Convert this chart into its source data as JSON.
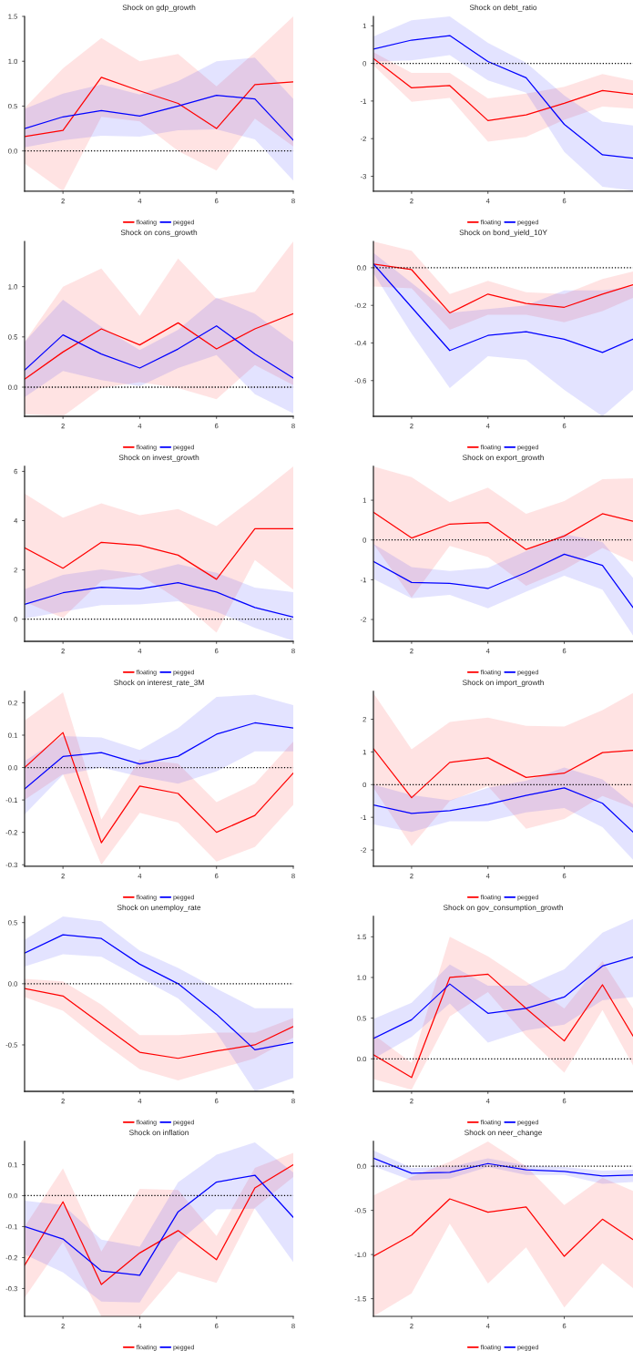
{
  "chart_data": [
    {
      "type": "line",
      "title": "Shock on gdp_growth",
      "x": [
        1,
        2,
        3,
        4,
        5,
        6,
        7,
        8
      ],
      "xlim": [
        1,
        8
      ],
      "xticks": [
        2,
        4,
        6,
        8
      ],
      "ylim": [
        -0.45,
        1.5
      ],
      "yticks": [
        {
          "value": 0,
          "label": "0.0"
        },
        {
          "value": 0.5,
          "label": "0.5"
        },
        {
          "value": 1,
          "label": "1.0"
        },
        1.5
      ],
      "grid": false,
      "legend": "bottom",
      "ref_lines": [
        {
          "axis": "y",
          "value": 0,
          "color": "#000000",
          "line_style": "dotted"
        }
      ],
      "series": [
        {
          "name": "floating",
          "color": "#ff0000",
          "values": [
            0.16,
            0.23,
            0.82,
            0.67,
            0.53,
            0.25,
            0.74,
            0.77
          ],
          "lower": [
            -0.14,
            -0.45,
            0.38,
            0.33,
            0.0,
            -0.22,
            0.36,
            0.05
          ],
          "upper": [
            0.48,
            0.92,
            1.26,
            1.0,
            1.08,
            0.72,
            1.1,
            1.5
          ]
        },
        {
          "name": "pegged",
          "color": "#0000ff",
          "values": [
            0.25,
            0.38,
            0.45,
            0.39,
            0.5,
            0.62,
            0.58,
            0.12
          ],
          "lower": [
            0.04,
            0.12,
            0.17,
            0.16,
            0.23,
            0.24,
            0.13,
            -0.33
          ],
          "upper": [
            0.47,
            0.64,
            0.74,
            0.63,
            0.78,
            1.0,
            1.04,
            0.58
          ]
        }
      ]
    },
    {
      "type": "line",
      "title": "Shock on debt_ratio",
      "x": [
        1,
        2,
        3,
        4,
        5,
        6,
        7,
        7.8
      ],
      "xlim": [
        1,
        7.8
      ],
      "xticks": [
        2,
        4,
        6
      ],
      "ylim": [
        -3.4,
        1.25
      ],
      "yticks": [
        -3,
        -2,
        -1,
        0,
        1
      ],
      "grid": false,
      "legend": "bottom",
      "ref_lines": [
        {
          "axis": "y",
          "value": 0,
          "color": "#000000",
          "line_style": "dotted"
        }
      ],
      "series": [
        {
          "name": "floating",
          "color": "#ff0000",
          "values": [
            0.13,
            -0.65,
            -0.59,
            -1.52,
            -1.37,
            -1.06,
            -0.72,
            -0.82
          ],
          "lower": [
            -0.05,
            -1.02,
            -0.92,
            -2.08,
            -1.95,
            -1.5,
            -1.15,
            -1.2
          ],
          "upper": [
            0.3,
            -0.25,
            -0.25,
            -0.93,
            -0.8,
            -0.62,
            -0.28,
            -0.45
          ]
        },
        {
          "name": "pegged",
          "color": "#0000ff",
          "values": [
            0.38,
            0.62,
            0.74,
            0.05,
            -0.38,
            -1.62,
            -2.43,
            -2.52
          ],
          "lower": [
            0.05,
            0.08,
            0.22,
            -0.45,
            -0.78,
            -2.35,
            -3.28,
            -3.38
          ],
          "upper": [
            0.72,
            1.15,
            1.25,
            0.55,
            0.02,
            -0.85,
            -1.55,
            -1.65
          ]
        }
      ]
    },
    {
      "type": "line",
      "title": "Shock on cons_growth",
      "x": [
        1,
        2,
        3,
        4,
        5,
        6,
        7,
        8
      ],
      "xlim": [
        1,
        8
      ],
      "xticks": [
        2,
        4,
        6,
        8
      ],
      "ylim": [
        -0.29,
        1.45
      ],
      "yticks": [
        {
          "value": 0,
          "label": "0.0"
        },
        {
          "value": 0.5,
          "label": "0.5"
        },
        {
          "value": 1,
          "label": "1.0"
        }
      ],
      "grid": false,
      "legend": "bottom",
      "ref_lines": [
        {
          "axis": "y",
          "value": 0,
          "color": "#000000",
          "line_style": "dotted"
        }
      ],
      "series": [
        {
          "name": "floating",
          "color": "#ff0000",
          "values": [
            0.08,
            0.35,
            0.58,
            0.42,
            0.64,
            0.38,
            0.58,
            0.73
          ],
          "lower": [
            -0.27,
            -0.29,
            -0.01,
            0.05,
            -0.01,
            -0.12,
            0.22,
            0.02
          ],
          "upper": [
            0.45,
            1.0,
            1.18,
            0.71,
            1.28,
            0.88,
            0.95,
            1.45
          ]
        },
        {
          "name": "pegged",
          "color": "#0000ff",
          "values": [
            0.17,
            0.52,
            0.33,
            0.19,
            0.38,
            0.61,
            0.33,
            0.09
          ],
          "lower": [
            -0.1,
            0.16,
            0.07,
            0.01,
            0.19,
            0.32,
            -0.07,
            -0.26
          ],
          "upper": [
            0.45,
            0.87,
            0.6,
            0.37,
            0.57,
            0.89,
            0.73,
            0.45
          ]
        }
      ]
    },
    {
      "type": "line",
      "title": "Shock on bond_yield_10Y",
      "x": [
        1,
        2,
        3,
        4,
        5,
        6,
        7,
        7.8
      ],
      "xlim": [
        1,
        7.8
      ],
      "xticks": [
        2,
        4,
        6
      ],
      "ylim": [
        -0.79,
        0.14
      ],
      "yticks": [
        {
          "value": -0.6,
          "label": "-0.6"
        },
        {
          "value": -0.4,
          "label": "-0.4"
        },
        {
          "value": -0.2,
          "label": "-0.2"
        },
        {
          "value": 0,
          "label": "0.0"
        }
      ],
      "grid": false,
      "legend": "bottom",
      "ref_lines": [
        {
          "axis": "y",
          "value": 0,
          "color": "#000000",
          "line_style": "dotted"
        }
      ],
      "series": [
        {
          "name": "floating",
          "color": "#ff0000",
          "values": [
            0.02,
            -0.01,
            -0.24,
            -0.14,
            -0.19,
            -0.21,
            -0.14,
            -0.09
          ],
          "lower": [
            -0.1,
            -0.11,
            -0.33,
            -0.25,
            -0.25,
            -0.29,
            -0.23,
            -0.16
          ],
          "upper": [
            0.14,
            0.09,
            -0.14,
            -0.07,
            -0.13,
            -0.14,
            -0.06,
            -0.02
          ]
        },
        {
          "name": "pegged",
          "color": "#0000ff",
          "values": [
            0.02,
            -0.21,
            -0.44,
            -0.36,
            -0.34,
            -0.38,
            -0.45,
            -0.38
          ],
          "lower": [
            -0.03,
            -0.35,
            -0.64,
            -0.47,
            -0.49,
            -0.65,
            -0.79,
            -0.65
          ],
          "upper": [
            0.08,
            -0.08,
            -0.24,
            -0.22,
            -0.2,
            -0.12,
            -0.12,
            -0.1
          ]
        }
      ]
    },
    {
      "type": "line",
      "title": "Shock on invest_growth",
      "x": [
        1,
        2,
        3,
        4,
        5,
        6,
        7,
        8
      ],
      "xlim": [
        1,
        8
      ],
      "xticks": [
        2,
        4,
        6,
        8
      ],
      "ylim": [
        -0.9,
        6.2
      ],
      "yticks": [
        0,
        2,
        4,
        6
      ],
      "grid": false,
      "legend": "bottom",
      "ref_lines": [
        {
          "axis": "y",
          "value": 0,
          "color": "#000000",
          "line_style": "dotted"
        }
      ],
      "series": [
        {
          "name": "floating",
          "color": "#ff0000",
          "values": [
            2.9,
            2.07,
            3.12,
            3.0,
            2.6,
            1.62,
            3.67,
            3.67
          ],
          "lower": [
            0.7,
            0.05,
            1.55,
            1.8,
            0.8,
            -0.55,
            2.4,
            1.2
          ],
          "upper": [
            5.1,
            4.12,
            4.7,
            4.22,
            4.47,
            3.78,
            4.95,
            6.2
          ]
        },
        {
          "name": "pegged",
          "color": "#0000ff",
          "values": [
            0.6,
            1.07,
            1.3,
            1.23,
            1.48,
            1.1,
            0.47,
            0.08
          ],
          "lower": [
            0.02,
            0.3,
            0.57,
            0.6,
            0.73,
            0.3,
            -0.35,
            -0.88
          ],
          "upper": [
            1.22,
            1.8,
            2.02,
            1.85,
            2.23,
            1.88,
            1.28,
            1.1
          ]
        }
      ]
    },
    {
      "type": "line",
      "title": "Shock on export_growth",
      "x": [
        1,
        2,
        3,
        4,
        5,
        6,
        7,
        7.8
      ],
      "xlim": [
        1,
        7.8
      ],
      "xticks": [
        2,
        4,
        6
      ],
      "ylim": [
        -2.55,
        1.85
      ],
      "yticks": [
        -2,
        -1,
        0,
        1
      ],
      "grid": false,
      "legend": "bottom",
      "ref_lines": [
        {
          "axis": "y",
          "value": 0,
          "color": "#000000",
          "line_style": "dotted"
        }
      ],
      "series": [
        {
          "name": "floating",
          "color": "#ff0000",
          "values": [
            0.7,
            0.05,
            0.4,
            0.44,
            -0.24,
            0.1,
            0.66,
            0.47
          ],
          "lower": [
            -0.1,
            -1.45,
            -0.15,
            -0.43,
            -1.15,
            -0.75,
            -0.2,
            -0.55
          ],
          "upper": [
            1.85,
            1.58,
            0.95,
            1.32,
            0.66,
            0.98,
            1.53,
            1.55
          ]
        },
        {
          "name": "pegged",
          "color": "#0000ff",
          "values": [
            -0.54,
            -1.07,
            -1.09,
            -1.22,
            -0.82,
            -0.36,
            -0.64,
            -1.7
          ],
          "lower": [
            -0.98,
            -1.47,
            -1.38,
            -1.72,
            -1.3,
            -0.9,
            -1.25,
            -2.4
          ],
          "upper": [
            -0.1,
            -0.68,
            -0.78,
            -0.7,
            -0.28,
            0.15,
            -0.05,
            -0.95
          ]
        }
      ]
    },
    {
      "type": "line",
      "title": "Shock on interest_rate_3M",
      "x": [
        1,
        2,
        3,
        4,
        5,
        6,
        7,
        8
      ],
      "xlim": [
        1,
        8
      ],
      "xticks": [
        2,
        4,
        6,
        8
      ],
      "ylim": [
        -0.305,
        0.235
      ],
      "yticks": [
        {
          "value": -0.3,
          "label": "-0.3"
        },
        {
          "value": -0.2,
          "label": "-0.2"
        },
        {
          "value": -0.1,
          "label": "-0.1"
        },
        {
          "value": 0,
          "label": "0.0"
        },
        0.1,
        0.2
      ],
      "grid": false,
      "legend": "bottom",
      "ref_lines": [
        {
          "axis": "y",
          "value": 0,
          "color": "#000000",
          "line_style": "dotted"
        }
      ],
      "series": [
        {
          "name": "floating",
          "color": "#ff0000",
          "values": [
            0.0,
            0.108,
            -0.232,
            -0.057,
            -0.08,
            -0.2,
            -0.148,
            -0.017
          ],
          "lower": [
            -0.1,
            -0.02,
            -0.3,
            -0.14,
            -0.17,
            -0.29,
            -0.245,
            -0.115
          ],
          "upper": [
            0.145,
            0.232,
            -0.16,
            0.025,
            0.012,
            -0.107,
            -0.05,
            0.08
          ]
        },
        {
          "name": "pegged",
          "color": "#0000ff",
          "values": [
            -0.066,
            0.034,
            0.046,
            0.011,
            0.035,
            0.103,
            0.138,
            0.122
          ],
          "lower": [
            -0.145,
            -0.022,
            0.0,
            -0.028,
            -0.05,
            -0.012,
            0.05,
            0.05
          ],
          "upper": [
            0.02,
            0.097,
            0.093,
            0.054,
            0.122,
            0.218,
            0.225,
            0.193
          ]
        }
      ]
    },
    {
      "type": "line",
      "title": "Shock on import_growth",
      "x": [
        1,
        2,
        3,
        4,
        5,
        6,
        7,
        7.8
      ],
      "xlim": [
        1,
        7.8
      ],
      "xticks": [
        2,
        4,
        6
      ],
      "ylim": [
        -2.5,
        2.85
      ],
      "yticks": [
        -2,
        -1,
        0,
        1,
        2
      ],
      "grid": false,
      "legend": "bottom",
      "ref_lines": [
        {
          "axis": "y",
          "value": 0,
          "color": "#000000",
          "line_style": "dotted"
        }
      ],
      "series": [
        {
          "name": "floating",
          "color": "#ff0000",
          "values": [
            1.1,
            -0.4,
            0.68,
            0.82,
            0.22,
            0.35,
            0.98,
            1.05
          ],
          "lower": [
            -0.1,
            -1.88,
            -0.5,
            -0.05,
            -1.35,
            -1.05,
            -0.35,
            -0.7
          ],
          "upper": [
            2.8,
            1.08,
            1.92,
            2.05,
            1.8,
            1.78,
            2.28,
            2.8
          ]
        },
        {
          "name": "pegged",
          "color": "#0000ff",
          "values": [
            -0.62,
            -0.88,
            -0.8,
            -0.6,
            -0.33,
            -0.1,
            -0.57,
            -1.45
          ],
          "lower": [
            -1.22,
            -1.45,
            -1.12,
            -1.12,
            -0.85,
            -0.72,
            -1.3,
            -2.3
          ],
          "upper": [
            0.0,
            -0.32,
            -0.48,
            -0.1,
            0.12,
            0.52,
            0.16,
            -0.6
          ]
        }
      ]
    },
    {
      "type": "line",
      "title": "Shock on unemploy_rate",
      "x": [
        1,
        2,
        3,
        4,
        5,
        6,
        7,
        8
      ],
      "xlim": [
        1,
        8
      ],
      "xticks": [
        2,
        4,
        6,
        8
      ],
      "ylim": [
        -0.88,
        0.55
      ],
      "yticks": [
        {
          "value": -0.5,
          "label": "-0.5"
        },
        {
          "value": 0,
          "label": "0.0"
        },
        0.5
      ],
      "grid": false,
      "legend": "bottom",
      "ref_lines": [
        {
          "axis": "y",
          "value": 0,
          "color": "#000000",
          "line_style": "dotted"
        }
      ],
      "series": [
        {
          "name": "floating",
          "color": "#ff0000",
          "values": [
            -0.04,
            -0.1,
            -0.33,
            -0.56,
            -0.61,
            -0.55,
            -0.5,
            -0.35
          ],
          "lower": [
            -0.11,
            -0.22,
            -0.47,
            -0.7,
            -0.79,
            -0.7,
            -0.61,
            -0.44
          ],
          "upper": [
            0.04,
            0.02,
            -0.17,
            -0.42,
            -0.42,
            -0.4,
            -0.4,
            -0.28
          ]
        },
        {
          "name": "pegged",
          "color": "#0000ff",
          "values": [
            0.25,
            0.4,
            0.37,
            0.16,
            0.0,
            -0.25,
            -0.54,
            -0.48
          ],
          "lower": [
            0.14,
            0.24,
            0.22,
            0.05,
            -0.12,
            -0.4,
            -0.88,
            -0.77
          ],
          "upper": [
            0.36,
            0.55,
            0.51,
            0.27,
            0.13,
            -0.04,
            -0.2,
            -0.2
          ]
        }
      ]
    },
    {
      "type": "line",
      "title": "Shock on gov_consumption_growth",
      "x": [
        1,
        2,
        3,
        4,
        5,
        6,
        7,
        7.8
      ],
      "xlim": [
        1,
        7.8
      ],
      "xticks": [
        2,
        4,
        6
      ],
      "ylim": [
        -0.4,
        1.75
      ],
      "yticks": [
        {
          "value": 0,
          "label": "0.0"
        },
        {
          "value": 0.5,
          "label": "0.5"
        },
        {
          "value": 1,
          "label": "1.0"
        },
        1.5
      ],
      "grid": false,
      "legend": "bottom",
      "ref_lines": [
        {
          "axis": "y",
          "value": 0,
          "color": "#000000",
          "line_style": "dotted"
        }
      ],
      "series": [
        {
          "name": "floating",
          "color": "#ff0000",
          "values": [
            0.05,
            -0.23,
            1.0,
            1.04,
            0.62,
            0.22,
            0.91,
            0.28
          ],
          "lower": [
            -0.25,
            -0.38,
            0.52,
            0.82,
            0.28,
            -0.17,
            0.6,
            -0.08
          ],
          "upper": [
            0.3,
            -0.05,
            1.5,
            1.26,
            0.95,
            0.62,
            1.2,
            0.62
          ]
        },
        {
          "name": "pegged",
          "color": "#0000ff",
          "values": [
            0.25,
            0.48,
            0.92,
            0.56,
            0.62,
            0.76,
            1.14,
            1.25
          ],
          "lower": [
            0.0,
            0.27,
            0.68,
            0.2,
            0.35,
            0.42,
            0.72,
            0.76
          ],
          "upper": [
            0.49,
            0.69,
            1.16,
            0.9,
            0.9,
            1.1,
            1.55,
            1.72
          ]
        }
      ]
    },
    {
      "type": "line",
      "title": "Shock on inflation",
      "x": [
        1,
        2,
        3,
        4,
        5,
        6,
        7,
        8
      ],
      "xlim": [
        1,
        8
      ],
      "xticks": [
        2,
        4,
        6,
        8
      ],
      "ylim": [
        -0.39,
        0.175
      ],
      "yticks": [
        {
          "value": -0.3,
          "label": "-0.3"
        },
        {
          "value": -0.2,
          "label": "-0.2"
        },
        {
          "value": -0.1,
          "label": "-0.1"
        },
        {
          "value": 0,
          "label": "0.0"
        },
        0.1
      ],
      "grid": false,
      "legend": "bottom",
      "ref_lines": [
        {
          "axis": "y",
          "value": 0,
          "color": "#000000",
          "line_style": "dotted"
        }
      ],
      "series": [
        {
          "name": "floating",
          "color": "#ff0000",
          "values": [
            -0.225,
            -0.02,
            -0.287,
            -0.185,
            -0.113,
            -0.207,
            0.025,
            0.1
          ],
          "lower": [
            -0.33,
            -0.15,
            -0.39,
            -0.39,
            -0.245,
            -0.282,
            -0.04,
            0.06
          ],
          "upper": [
            -0.1,
            0.088,
            -0.18,
            0.022,
            0.018,
            -0.13,
            0.09,
            0.138
          ]
        },
        {
          "name": "pegged",
          "color": "#0000ff",
          "values": [
            -0.1,
            -0.14,
            -0.243,
            -0.257,
            -0.052,
            0.044,
            0.066,
            -0.07
          ],
          "lower": [
            -0.19,
            -0.248,
            -0.342,
            -0.345,
            -0.15,
            -0.044,
            -0.042,
            -0.215
          ],
          "upper": [
            -0.016,
            -0.03,
            -0.142,
            -0.165,
            0.043,
            0.132,
            0.172,
            0.075
          ]
        }
      ]
    },
    {
      "type": "line",
      "title": "Shock on neer_change",
      "x": [
        1,
        2,
        3,
        4,
        5,
        6,
        7,
        7.8
      ],
      "xlim": [
        1,
        7.8
      ],
      "xticks": [
        2,
        4,
        6
      ],
      "ylim": [
        -1.7,
        0.28
      ],
      "yticks": [
        -1.5,
        {
          "value": -1,
          "label": "-1.0"
        },
        -0.5,
        {
          "value": 0,
          "label": "0.0"
        }
      ],
      "grid": false,
      "legend": "bottom",
      "ref_lines": [
        {
          "axis": "y",
          "value": 0,
          "color": "#000000",
          "line_style": "dotted"
        }
      ],
      "series": [
        {
          "name": "floating",
          "color": "#ff0000",
          "values": [
            -1.02,
            -0.78,
            -0.37,
            -0.52,
            -0.46,
            -1.02,
            -0.6,
            -0.83
          ],
          "lower": [
            -1.7,
            -1.44,
            -0.65,
            -1.33,
            -0.92,
            -1.6,
            -1.1,
            -1.38
          ],
          "upper": [
            -0.33,
            -0.12,
            0.05,
            0.28,
            0.0,
            -0.44,
            -0.13,
            -0.28
          ]
        },
        {
          "name": "pegged",
          "color": "#0000ff",
          "values": [
            0.09,
            -0.08,
            -0.07,
            0.03,
            -0.04,
            -0.06,
            -0.11,
            -0.1
          ],
          "lower": [
            0.0,
            -0.16,
            -0.14,
            -0.01,
            -0.1,
            -0.1,
            -0.2,
            -0.18
          ],
          "upper": [
            0.18,
            -0.02,
            -0.01,
            0.09,
            0.01,
            -0.01,
            -0.05,
            -0.04
          ]
        }
      ]
    }
  ]
}
